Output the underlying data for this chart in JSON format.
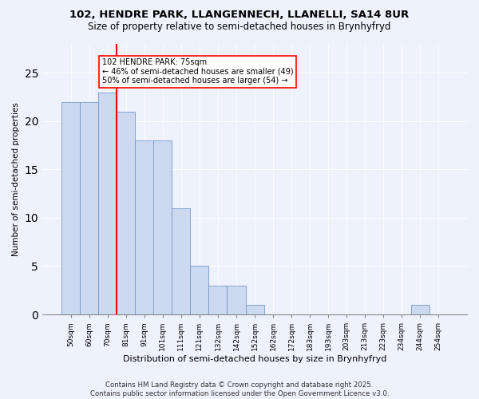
{
  "title": "102, HENDRE PARK, LLANGENNECH, LLANELLI, SA14 8UR",
  "subtitle": "Size of property relative to semi-detached houses in Brynhyfryd",
  "xlabel": "Distribution of semi-detached houses by size in Brynhyfryd",
  "ylabel": "Number of semi-detached properties",
  "bin_labels": [
    "50sqm",
    "60sqm",
    "70sqm",
    "81sqm",
    "91sqm",
    "101sqm",
    "111sqm",
    "121sqm",
    "132sqm",
    "142sqm",
    "152sqm",
    "162sqm",
    "172sqm",
    "183sqm",
    "193sqm",
    "203sqm",
    "213sqm",
    "223sqm",
    "234sqm",
    "244sqm",
    "254sqm"
  ],
  "bin_values": [
    22,
    22,
    23,
    21,
    18,
    18,
    11,
    5,
    3,
    3,
    1,
    0,
    0,
    0,
    0,
    0,
    0,
    0,
    0,
    1,
    0
  ],
  "bar_color": "#ccd9f0",
  "bar_edge_color": "#7799cc",
  "vline_x_index": 2,
  "vline_color": "red",
  "annotation_text": "102 HENDRE PARK: 75sqm\n← 46% of semi-detached houses are smaller (49)\n50% of semi-detached houses are larger (54) →",
  "annotation_box_color": "white",
  "annotation_box_edge": "red",
  "ylim": [
    0,
    28
  ],
  "yticks": [
    0,
    5,
    10,
    15,
    20,
    25
  ],
  "footer_text": "Contains HM Land Registry data © Crown copyright and database right 2025.\nContains public sector information licensed under the Open Government Licence v3.0.",
  "bg_color": "#eef2fc"
}
